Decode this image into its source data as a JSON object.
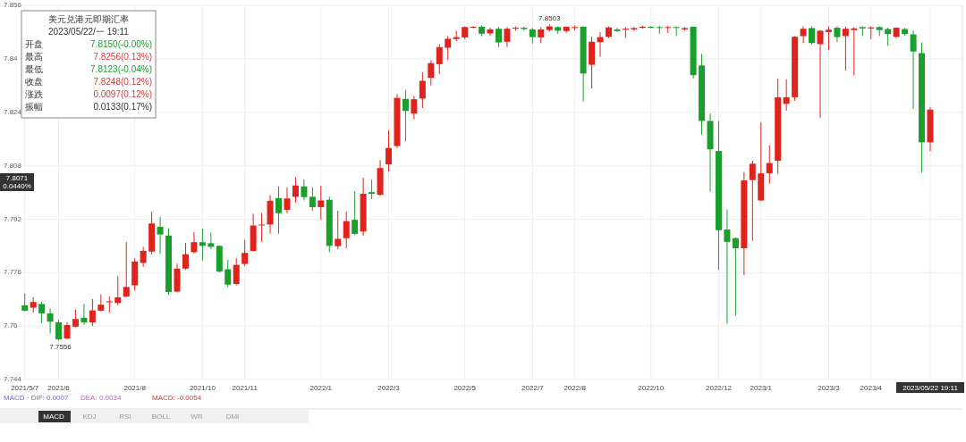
{
  "chart_data": {
    "type": "candlestick",
    "title": "美元兑港元即期汇率",
    "subtitle": "2023/05/22/一 19:11",
    "categories": [
      "2021/5/7",
      null,
      null,
      null,
      "2021/6",
      null,
      null,
      null,
      null,
      null,
      null,
      null,
      null,
      "2021/8",
      null,
      null,
      null,
      null,
      null,
      null,
      null,
      "2021/10",
      null,
      null,
      null,
      null,
      "2021/11",
      null,
      null,
      null,
      null,
      null,
      null,
      null,
      null,
      "2022/1",
      null,
      null,
      null,
      null,
      null,
      null,
      null,
      "2022/3",
      null,
      null,
      null,
      null,
      null,
      null,
      null,
      null,
      "2022/5",
      null,
      null,
      null,
      null,
      null,
      null,
      null,
      "2022/7",
      null,
      null,
      null,
      null,
      "2022/8",
      null,
      null,
      null,
      null,
      null,
      null,
      null,
      null,
      "2022/10",
      null,
      null,
      null,
      null,
      null,
      null,
      null,
      "2022/12",
      null,
      null,
      null,
      null,
      "2023/1",
      null,
      null,
      null,
      null,
      null,
      null,
      null,
      "2023/3",
      null,
      null,
      null,
      null,
      "2023/4",
      null,
      null,
      null,
      null,
      null,
      null,
      "2023/05/22 19:11"
    ],
    "ohlc": [
      [
        7.7662,
        7.7697,
        7.7644,
        7.7646
      ],
      [
        7.7655,
        7.7686,
        7.764,
        7.7672
      ],
      [
        7.7666,
        7.7672,
        7.7609,
        7.7638
      ],
      [
        7.7638,
        7.7653,
        7.7578,
        7.7613
      ],
      [
        7.7611,
        7.7618,
        7.7556,
        7.756
      ],
      [
        7.7563,
        7.7611,
        7.756,
        7.7603
      ],
      [
        7.7598,
        7.7649,
        7.7596,
        7.7621
      ],
      [
        7.7625,
        7.7666,
        7.7604,
        7.7611
      ],
      [
        7.7611,
        7.7681,
        7.76,
        7.7647
      ],
      [
        7.7646,
        7.7695,
        7.7644,
        7.7664
      ],
      [
        7.7671,
        7.7688,
        7.764,
        7.7674
      ],
      [
        7.7669,
        7.7749,
        7.7662,
        7.7686
      ],
      [
        7.7688,
        7.7852,
        7.7687,
        7.7717
      ],
      [
        7.7722,
        7.7803,
        7.7706,
        7.7793
      ],
      [
        7.7789,
        7.7837,
        7.7777,
        7.7825
      ],
      [
        7.7823,
        7.7943,
        7.7814,
        7.7907
      ],
      [
        7.7897,
        7.7927,
        7.7816,
        7.7874
      ],
      [
        7.7871,
        7.7893,
        7.7693,
        7.7702
      ],
      [
        7.7703,
        7.7787,
        7.7702,
        7.7772
      ],
      [
        7.7772,
        7.7849,
        7.7768,
        7.7815
      ],
      [
        7.7821,
        7.7881,
        7.7817,
        7.7851
      ],
      [
        7.7851,
        7.7892,
        7.7796,
        7.784
      ],
      [
        7.7848,
        7.788,
        7.783,
        7.7837
      ],
      [
        7.784,
        7.7842,
        7.7761,
        7.7763
      ],
      [
        7.777,
        7.7799,
        7.7717,
        7.7724
      ],
      [
        7.7726,
        7.7803,
        7.7722,
        7.7783
      ],
      [
        7.7786,
        7.7858,
        7.7779,
        7.7819
      ],
      [
        7.7825,
        7.7936,
        7.7823,
        7.7901
      ],
      [
        7.7902,
        7.7939,
        7.7852,
        7.7904
      ],
      [
        7.7904,
        7.7992,
        7.7876,
        7.7975
      ],
      [
        7.7983,
        7.8018,
        7.7876,
        7.7938
      ],
      [
        7.7948,
        7.8015,
        7.7938,
        7.7982
      ],
      [
        7.7987,
        7.8045,
        7.7969,
        7.8021
      ],
      [
        7.8018,
        7.8039,
        7.7976,
        7.7986
      ],
      [
        7.7987,
        7.8015,
        7.7945,
        7.7956
      ],
      [
        7.7956,
        7.802,
        7.7918,
        7.7976
      ],
      [
        7.7978,
        7.7987,
        7.7821,
        7.784
      ],
      [
        7.7839,
        7.7945,
        7.783,
        7.7861
      ],
      [
        7.7863,
        7.7943,
        7.7833,
        7.7914
      ],
      [
        7.7918,
        7.8004,
        7.7872,
        7.7876
      ],
      [
        7.7883,
        7.8044,
        7.787,
        7.7996
      ],
      [
        7.8001,
        7.8038,
        7.798,
        7.7996
      ],
      [
        7.7993,
        7.8097,
        7.7989,
        7.8073
      ],
      [
        7.8084,
        7.8185,
        7.8062,
        7.8133
      ],
      [
        7.8139,
        7.8294,
        7.8133,
        7.8283
      ],
      [
        7.828,
        7.8307,
        7.8153,
        7.8244
      ],
      [
        7.8236,
        7.8289,
        7.8219,
        7.8279
      ],
      [
        7.8281,
        7.836,
        7.8252,
        7.8334
      ],
      [
        7.8343,
        7.8396,
        7.832,
        7.8387
      ],
      [
        7.8384,
        7.8444,
        7.8354,
        7.8435
      ],
      [
        7.8433,
        7.8468,
        7.8396,
        7.846
      ],
      [
        7.8459,
        7.8484,
        7.8453,
        7.8465
      ],
      [
        7.8464,
        7.8497,
        7.8458,
        7.8495
      ],
      [
        7.8494,
        7.8498,
        7.8491,
        7.8496
      ],
      [
        7.8496,
        7.85,
        7.8468,
        7.8475
      ],
      [
        7.8476,
        7.8493,
        7.8468,
        7.8488
      ],
      [
        7.849,
        7.8495,
        7.8435,
        7.8449
      ],
      [
        7.8451,
        7.8495,
        7.8435,
        7.849
      ],
      [
        7.8491,
        7.8497,
        7.8484,
        7.8493
      ],
      [
        7.8493,
        7.8496,
        7.8484,
        7.8489
      ],
      [
        7.8488,
        7.8493,
        7.8446,
        7.8465
      ],
      [
        7.8464,
        7.8495,
        7.8447,
        7.8488
      ],
      [
        7.8486,
        7.8503,
        7.8481,
        7.8497
      ],
      [
        7.8495,
        7.8497,
        7.8474,
        7.8484
      ],
      [
        7.8483,
        7.8497,
        7.8478,
        7.8496
      ],
      [
        7.8494,
        7.85,
        7.8484,
        7.8495
      ],
      [
        7.8496,
        7.8497,
        7.8272,
        7.8356
      ],
      [
        7.8382,
        7.8466,
        7.8311,
        7.8451
      ],
      [
        7.845,
        7.848,
        7.8406,
        7.8465
      ],
      [
        7.8466,
        7.8497,
        7.8462,
        7.8494
      ],
      [
        7.8488,
        7.8493,
        7.8481,
        7.8483
      ],
      [
        7.8487,
        7.8495,
        7.8462,
        7.849
      ],
      [
        7.8488,
        7.8495,
        7.8484,
        7.8492
      ],
      [
        7.8493,
        7.8499,
        7.849,
        7.8496
      ],
      [
        7.8496,
        7.8498,
        7.8491,
        7.8493
      ],
      [
        7.8495,
        7.8499,
        7.8475,
        7.8494
      ],
      [
        7.8493,
        7.8498,
        7.8477,
        7.8495
      ],
      [
        7.8495,
        7.8497,
        7.8468,
        7.8493
      ],
      [
        7.8488,
        7.8495,
        7.8484,
        7.8492
      ],
      [
        7.8496,
        7.8497,
        7.8341,
        7.8351
      ],
      [
        7.838,
        7.8415,
        7.8173,
        7.8214
      ],
      [
        7.8214,
        7.8236,
        7.8002,
        7.8129
      ],
      [
        7.8124,
        7.8214,
        7.7768,
        7.7887
      ],
      [
        7.7889,
        7.7949,
        7.7607,
        7.7852
      ],
      [
        7.7863,
        7.7865,
        7.7631,
        7.7833
      ],
      [
        7.7833,
        7.8061,
        7.7752,
        7.8036
      ],
      [
        7.8037,
        7.8095,
        7.7855,
        7.8086
      ],
      [
        7.7976,
        7.821,
        7.7974,
        7.8057
      ],
      [
        7.8057,
        7.8141,
        7.8026,
        7.8088
      ],
      [
        7.8095,
        7.8341,
        7.8055,
        7.8285
      ],
      [
        7.8265,
        7.8339,
        7.8245,
        7.8285
      ],
      [
        7.8285,
        7.8468,
        7.8274,
        7.8466
      ],
      [
        7.8468,
        7.8497,
        7.8447,
        7.849
      ],
      [
        7.8492,
        7.8497,
        7.8442,
        7.8447
      ],
      [
        7.8444,
        7.8486,
        7.8223,
        7.8484
      ],
      [
        7.848,
        7.8497,
        7.8427,
        7.8487
      ],
      [
        7.8493,
        7.8497,
        7.845,
        7.8465
      ],
      [
        7.8468,
        7.8497,
        7.8365,
        7.849
      ],
      [
        7.8486,
        7.8495,
        7.835,
        7.8491
      ],
      [
        7.8495,
        7.8497,
        7.8468,
        7.8491
      ],
      [
        7.8491,
        7.8497,
        7.8459,
        7.8494
      ],
      [
        7.8495,
        7.8497,
        7.8468,
        7.8486
      ],
      [
        7.8489,
        7.8493,
        7.8439,
        7.8474
      ],
      [
        7.8466,
        7.8495,
        7.8462,
        7.8493
      ],
      [
        7.8489,
        7.8493,
        7.8468,
        7.8474
      ],
      [
        7.8473,
        7.8484,
        7.825,
        7.8422
      ],
      [
        7.8417,
        7.8449,
        7.806,
        7.815
      ],
      [
        7.815,
        7.8256,
        7.8123,
        7.8248
      ]
    ],
    "colors": [
      "#1a9f2c",
      "#e0231c",
      "#1a9f2c",
      "#1a9f2c",
      "#1a9f2c",
      "#e0231c",
      "#e0231c",
      "#1a9f2c",
      "#e0231c",
      "#e0231c",
      "#e0231c",
      "#e0231c",
      "#e0231c",
      "#e0231c",
      "#e0231c",
      "#e0231c",
      "#1a9f2c",
      "#1a9f2c",
      "#e0231c",
      "#e0231c",
      "#e0231c",
      "#1a9f2c",
      "#1a9f2c",
      "#1a9f2c",
      "#1a9f2c",
      "#e0231c",
      "#e0231c",
      "#e0231c",
      "#e0231c",
      "#e0231c",
      "#1a9f2c",
      "#e0231c",
      "#e0231c",
      "#1a9f2c",
      "#1a9f2c",
      "#e0231c",
      "#1a9f2c",
      "#e0231c",
      "#e0231c",
      "#1a9f2c",
      "#e0231c",
      "#1a9f2c",
      "#e0231c",
      "#e0231c",
      "#e0231c",
      "#1a9f2c",
      "#e0231c",
      "#e0231c",
      "#e0231c",
      "#e0231c",
      "#e0231c",
      "#e0231c",
      "#e0231c",
      "#e0231c",
      "#1a9f2c",
      "#e0231c",
      "#1a9f2c",
      "#e0231c",
      "#e0231c",
      "#1a9f2c",
      "#1a9f2c",
      "#e0231c",
      "#e0231c",
      "#1a9f2c",
      "#e0231c",
      "#e0231c",
      "#1a9f2c",
      "#e0231c",
      "#e0231c",
      "#e0231c",
      "#1a9f2c",
      "#e0231c",
      "#e0231c",
      "#e0231c",
      "#1a9f2c",
      "#1a9f2c",
      "#e0231c",
      "#1a9f2c",
      "#e0231c",
      "#1a9f2c",
      "#1a9f2c",
      "#1a9f2c",
      "#1a9f2c",
      "#1a9f2c",
      "#1a9f2c",
      "#e0231c",
      "#e0231c",
      "#e0231c",
      "#e0231c",
      "#e0231c",
      "#e0231c",
      "#e0231c",
      "#e0231c",
      "#1a9f2c",
      "#e0231c",
      "#e0231c",
      "#1a9f2c",
      "#e0231c",
      "#e0231c",
      "#1a9f2c",
      "#e0231c",
      "#1a9f2c",
      "#1a9f2c",
      "#e0231c",
      "#1a9f2c",
      "#1a9f2c",
      "#1a9f2c",
      "#e0231c"
    ],
    "ylim": [
      7.744,
      7.856
    ],
    "yticks": [
      7.744,
      7.76,
      7.776,
      7.792,
      7.808,
      7.824,
      7.84,
      7.856
    ],
    "grid": true,
    "annotations": [
      {
        "text": "7.7556",
        "x": "2021/6",
        "y": 7.7556
      },
      {
        "text": "7.8503",
        "y": 7.8503
      },
      "7.8071",
      "0.0440%",
      "开盘",
      "7.8150(-0.00%)",
      "最高",
      "7.8256(0.13%)",
      "最低",
      "7.8123(-0.04%)",
      "收盘",
      "7.8248(0.12%)",
      "涨跌",
      "0.0097(0.12%)",
      "振幅",
      "0.0133(0.17%)",
      "MACD · DIF: 0.0007",
      "DEA: 0.0034",
      "MACD: -0.0054",
      "MACD",
      "KDJ",
      "RSI",
      "BOLL",
      "WR",
      "DMI"
    ]
  }
}
